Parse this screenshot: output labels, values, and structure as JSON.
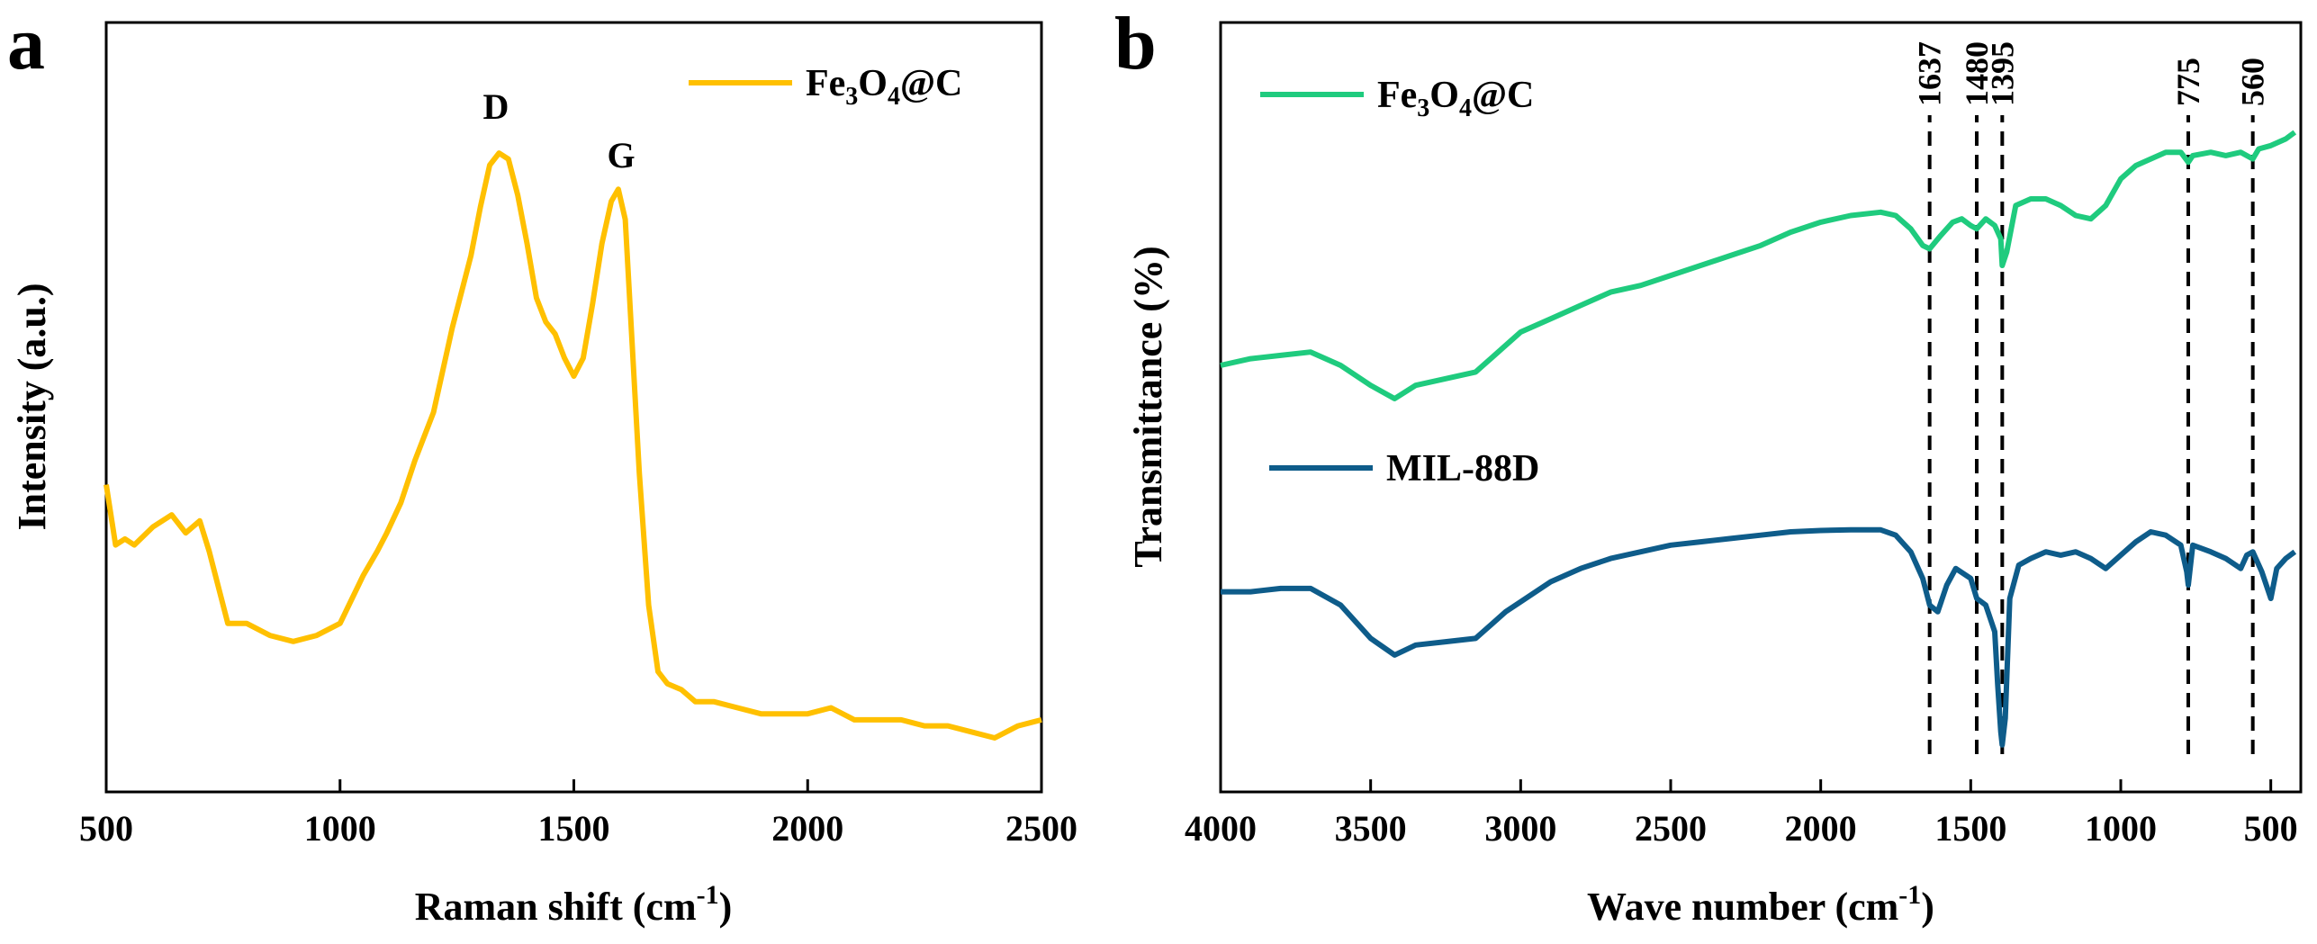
{
  "chart_data": [
    {
      "panel": "a",
      "type": "line",
      "title": "",
      "xlabel": "Raman shift (cm",
      "xlabel_sup": "-1",
      "xlabel_end": ")",
      "ylabel": "Intensity (a.u.)",
      "xlim": [
        500,
        2500
      ],
      "ylim": [
        0,
        100
      ],
      "xticks": [
        500,
        1000,
        1500,
        2000,
        2500
      ],
      "grid": false,
      "legend_position": "top-right",
      "series": [
        {
          "name": "Fe3O4@C",
          "legend_main": "Fe",
          "legend_sub1": "3",
          "legend_mid": "O",
          "legend_sub2": "4",
          "legend_end": "@C",
          "color": "#FFC000",
          "x": [
            500,
            520,
            540,
            560,
            600,
            640,
            670,
            700,
            720,
            760,
            800,
            850,
            900,
            950,
            1000,
            1050,
            1080,
            1100,
            1130,
            1160,
            1200,
            1240,
            1280,
            1300,
            1320,
            1340,
            1360,
            1380,
            1400,
            1420,
            1440,
            1460,
            1480,
            1500,
            1520,
            1540,
            1560,
            1580,
            1595,
            1610,
            1625,
            1640,
            1660,
            1680,
            1700,
            1730,
            1760,
            1800,
            1850,
            1900,
            1950,
            2000,
            2050,
            2100,
            2150,
            2200,
            2250,
            2300,
            2350,
            2400,
            2450,
            2500
          ],
          "y": [
            42,
            32,
            33,
            32,
            35,
            37,
            34,
            36,
            31,
            19,
            19,
            17,
            16,
            17,
            19,
            27,
            31,
            34,
            39,
            46,
            54,
            68,
            80,
            88,
            95,
            97,
            96,
            90,
            82,
            73,
            69,
            67,
            63,
            60,
            63,
            72,
            82,
            89,
            91,
            86,
            65,
            44,
            22,
            11,
            9,
            8,
            6,
            6,
            5,
            4,
            4,
            4,
            5,
            3,
            3,
            3,
            2,
            2,
            1,
            0,
            2,
            3
          ]
        }
      ],
      "annotations": [
        {
          "text": "D",
          "x": 1340,
          "y": 97
        },
        {
          "text": "G",
          "x": 1595,
          "y": 91
        }
      ]
    },
    {
      "panel": "b",
      "type": "line",
      "title": "",
      "xlabel": "Wave number (cm",
      "xlabel_sup": "-1",
      "xlabel_end": ")",
      "ylabel": "Transmittance (%)",
      "xlim": [
        4000,
        400
      ],
      "ylim": [
        0,
        100
      ],
      "xticks": [
        4000,
        3500,
        3000,
        2500,
        2000,
        1500,
        1000,
        500
      ],
      "grid": false,
      "legend_position": "top-left",
      "series": [
        {
          "name": "Fe3O4@C",
          "legend_main": "Fe",
          "legend_sub1": "3",
          "legend_mid": "O",
          "legend_sub2": "4",
          "legend_end": "@C",
          "color": "#1FCB7E",
          "x": [
            4000,
            3900,
            3800,
            3700,
            3600,
            3500,
            3420,
            3350,
            3250,
            3150,
            3100,
            3050,
            3000,
            2900,
            2800,
            2700,
            2600,
            2500,
            2400,
            2300,
            2200,
            2100,
            2000,
            1900,
            1800,
            1750,
            1700,
            1660,
            1637,
            1600,
            1560,
            1530,
            1500,
            1480,
            1450,
            1420,
            1400,
            1395,
            1380,
            1350,
            1300,
            1250,
            1200,
            1150,
            1100,
            1050,
            1000,
            950,
            900,
            850,
            800,
            775,
            760,
            700,
            650,
            600,
            560,
            540,
            500,
            450,
            420
          ],
          "y": [
            60,
            61,
            61.5,
            62,
            60,
            57,
            55,
            57,
            58,
            59,
            61,
            63,
            65,
            67,
            69,
            71,
            72,
            73.5,
            75,
            76.5,
            78,
            80,
            81.5,
            82.5,
            83,
            82.5,
            80.5,
            78,
            77.5,
            79.5,
            81.5,
            82,
            81,
            80.5,
            82,
            81,
            79,
            75,
            77,
            84,
            85,
            85,
            84,
            82.5,
            82,
            84,
            88,
            90,
            91,
            92,
            92,
            90.5,
            91.5,
            92,
            91.5,
            92,
            91,
            92.5,
            93,
            94,
            95
          ]
        },
        {
          "name": "MIL-88D",
          "legend_main": "MIL-88D",
          "color": "#0E5C8A",
          "x": [
            4000,
            3900,
            3800,
            3700,
            3600,
            3500,
            3420,
            3350,
            3250,
            3150,
            3100,
            3050,
            3000,
            2900,
            2800,
            2700,
            2600,
            2500,
            2400,
            2300,
            2200,
            2100,
            2000,
            1900,
            1800,
            1750,
            1700,
            1660,
            1637,
            1610,
            1580,
            1550,
            1500,
            1480,
            1450,
            1420,
            1410,
            1400,
            1395,
            1385,
            1370,
            1340,
            1300,
            1250,
            1200,
            1150,
            1100,
            1050,
            1000,
            950,
            900,
            850,
            800,
            780,
            775,
            760,
            700,
            650,
            600,
            580,
            560,
            530,
            500,
            480,
            450,
            420
          ],
          "y": [
            26,
            26,
            26.5,
            26.5,
            24,
            19,
            16.5,
            18,
            18.5,
            19,
            21,
            23,
            24.5,
            27.5,
            29.5,
            31,
            32,
            33,
            33.5,
            34,
            34.5,
            35,
            35.2,
            35.3,
            35.3,
            34.5,
            32,
            28,
            24,
            23,
            27,
            29.5,
            28,
            25,
            24,
            20,
            12,
            5,
            3,
            7,
            25,
            30,
            31,
            32,
            31.5,
            32,
            31,
            29.5,
            31.5,
            33.5,
            35,
            34.5,
            33,
            29,
            27,
            33,
            32,
            31,
            29.5,
            31.5,
            32,
            29,
            25,
            29.5,
            31,
            32
          ]
        }
      ],
      "marker_lines": [
        {
          "x": 1637,
          "label": "1637"
        },
        {
          "x": 1480,
          "label": "1480"
        },
        {
          "x": 1395,
          "label": "1395"
        },
        {
          "x": 775,
          "label": "775"
        },
        {
          "x": 560,
          "label": "560"
        }
      ]
    }
  ],
  "panels": {
    "a": {
      "letter": "a"
    },
    "b": {
      "letter": "b"
    }
  }
}
